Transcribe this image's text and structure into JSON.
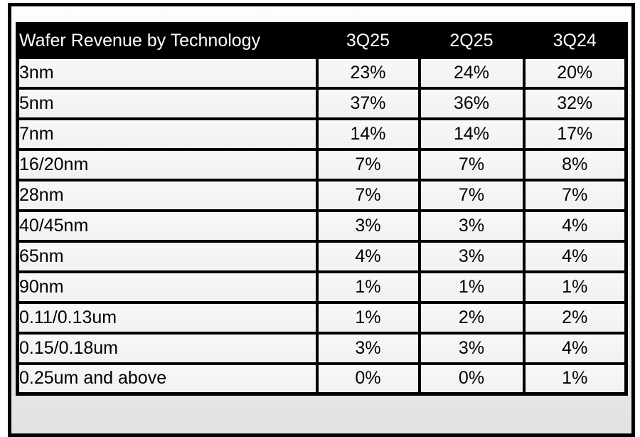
{
  "colors": {
    "header_bg": "#000000",
    "header_text": "#ffffff",
    "cell_bg": "#f4f4f4",
    "border": "#000000",
    "canvas_bg": "#ffffff"
  },
  "chart_data": {
    "type": "table",
    "title": "Wafer Revenue by Technology",
    "columns": [
      "3Q25",
      "2Q25",
      "3Q24"
    ],
    "rows": [
      {
        "label": "3nm",
        "values": [
          "23%",
          "24%",
          "20%"
        ]
      },
      {
        "label": "5nm",
        "values": [
          "37%",
          "36%",
          "32%"
        ]
      },
      {
        "label": "7nm",
        "values": [
          "14%",
          "14%",
          "17%"
        ]
      },
      {
        "label": "16/20nm",
        "values": [
          "7%",
          "7%",
          "8%"
        ]
      },
      {
        "label": "28nm",
        "values": [
          "7%",
          "7%",
          "7%"
        ]
      },
      {
        "label": "40/45nm",
        "values": [
          "3%",
          "3%",
          "4%"
        ]
      },
      {
        "label": "65nm",
        "values": [
          "4%",
          "3%",
          "4%"
        ]
      },
      {
        "label": "90nm",
        "values": [
          "1%",
          "1%",
          "1%"
        ]
      },
      {
        "label": "0.11/0.13um",
        "values": [
          "1%",
          "2%",
          "2%"
        ]
      },
      {
        "label": "0.15/0.18um",
        "values": [
          "3%",
          "3%",
          "4%"
        ]
      },
      {
        "label": "0.25um and above",
        "values": [
          "0%",
          "0%",
          "1%"
        ]
      }
    ],
    "unit": "%"
  }
}
